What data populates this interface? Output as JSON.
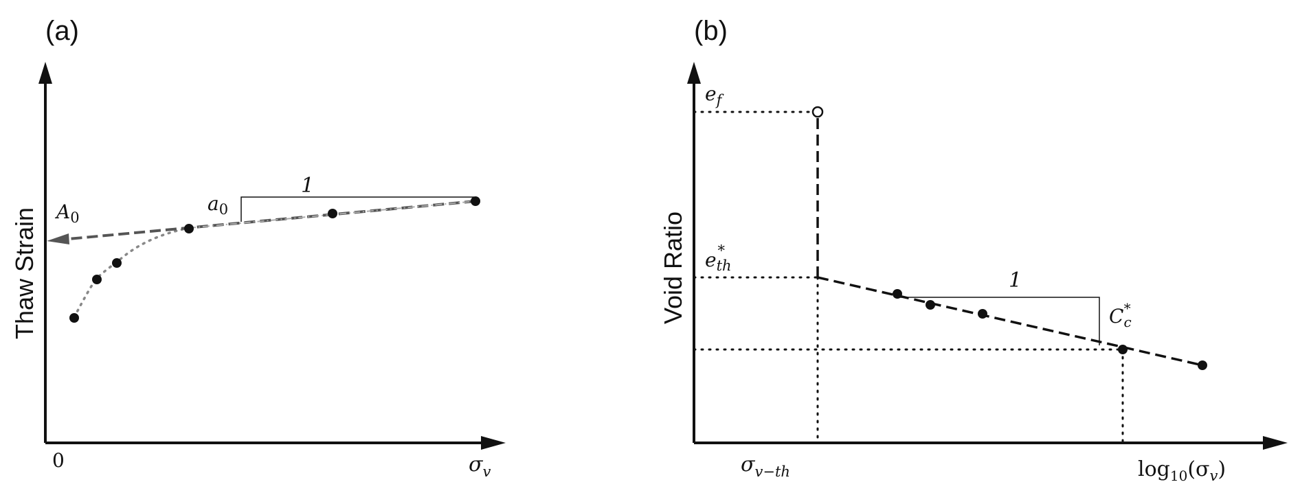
{
  "panel_a": {
    "label": "(a)",
    "y_axis_title": "Thaw Strain",
    "origin_label": "0",
    "x_label": "σ",
    "x_label_sub": "v",
    "intercept_label": "A",
    "intercept_sub": "0",
    "slope_label": "a",
    "slope_sub": "0",
    "run_label": "1"
  },
  "panel_b": {
    "label": "(b)",
    "y_axis_title": "Void Ratio",
    "ef_label": "e",
    "ef_sub": "f",
    "eth_label": "e",
    "eth_sub": "th",
    "eth_sup": "*",
    "sigma_th_label": "σ",
    "sigma_th_sub": "v−th",
    "log_label_prefix": "log",
    "log_label_sub": "10",
    "log_label_arg_open": "(σ",
    "log_label_arg_sub": "v",
    "log_label_arg_close": ")",
    "cc_label": "C",
    "cc_sub": "c",
    "cc_sup": "*",
    "run_label": "1"
  },
  "colors": {
    "ink": "#111111",
    "dashed_line": "#555555",
    "dotted_curve": "#888888"
  }
}
